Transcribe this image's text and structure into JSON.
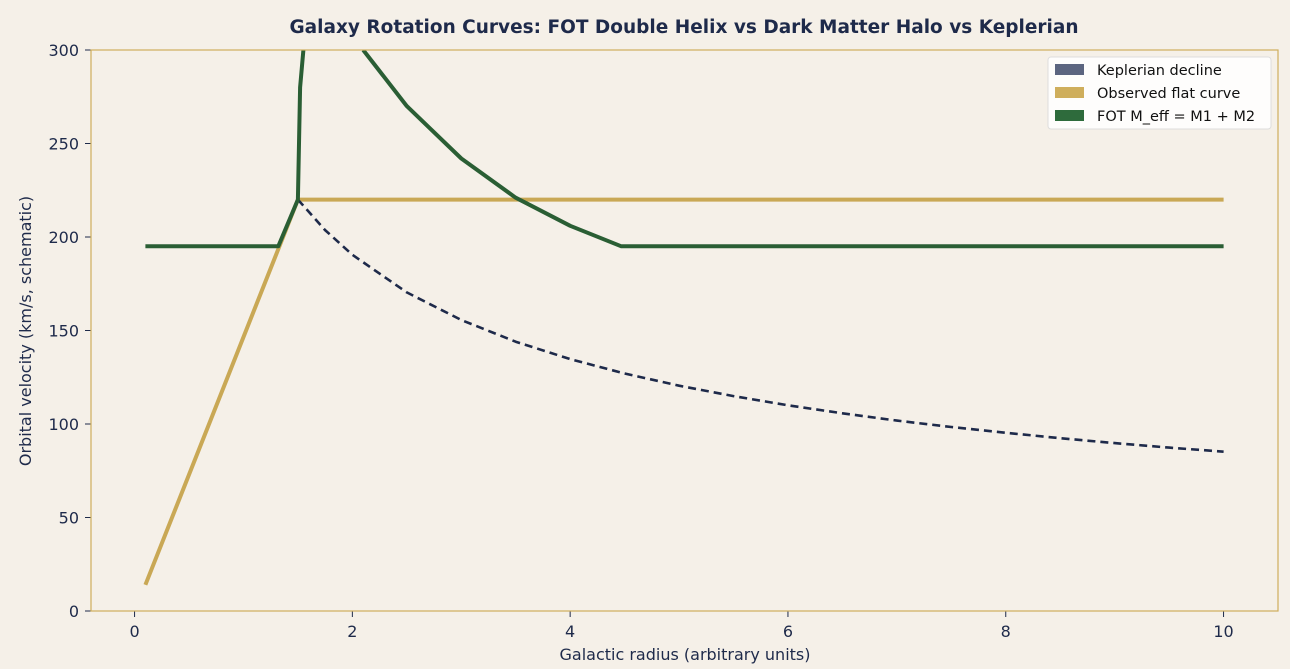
{
  "chart_data": {
    "type": "line",
    "title": "Galaxy Rotation Curves: FOT Double Helix vs Dark Matter Halo vs Keplerian",
    "xlabel": "Galactic radius (arbitrary units)",
    "ylabel": "Orbital velocity (km/s, schematic)",
    "xlim": [
      -0.4,
      10.5
    ],
    "ylim": [
      0,
      300
    ],
    "xticks": [
      0,
      2,
      4,
      6,
      8,
      10
    ],
    "yticks": [
      0,
      50,
      100,
      150,
      200,
      250,
      300
    ],
    "grid": false,
    "legend_position": "top-right",
    "series": [
      {
        "name": "Keplerian decline",
        "color": "#1e2a4a",
        "legend_color": "#5c6580",
        "style": "dashed",
        "x": [
          1.5,
          1.75,
          2,
          2.5,
          3,
          3.5,
          4,
          4.5,
          5,
          5.5,
          6,
          6.5,
          7,
          7.5,
          8,
          8.5,
          9,
          9.5,
          10
        ],
        "y": [
          220,
          203.7,
          190.5,
          170.4,
          155.6,
          144.0,
          134.7,
          127.0,
          120.5,
          114.9,
          110.0,
          105.7,
          101.8,
          98.4,
          95.3,
          92.4,
          89.8,
          87.4,
          85.2
        ]
      },
      {
        "name": "Observed flat curve",
        "color": "#c9a855",
        "legend_color": "#cfae5c",
        "style": "solid",
        "x": [
          0.1,
          1.5,
          10
        ],
        "y": [
          14,
          220,
          220
        ]
      },
      {
        "name": "FOT M_eff = M1 + M2",
        "color": "#2a5e34",
        "legend_color": "#2e6b3c",
        "style": "solid",
        "segments": [
          {
            "x": [
              0.1,
              1.32,
              1.5,
              1.52,
              1.55
            ],
            "y": [
              195,
              195,
              220,
              280,
              300
            ]
          },
          {
            "x": [
              2.1,
              2.5,
              3,
              3.5,
              4,
              4.47,
              10
            ],
            "y": [
              300,
              270,
              242,
              221,
              206,
              195,
              195
            ]
          }
        ]
      }
    ]
  }
}
